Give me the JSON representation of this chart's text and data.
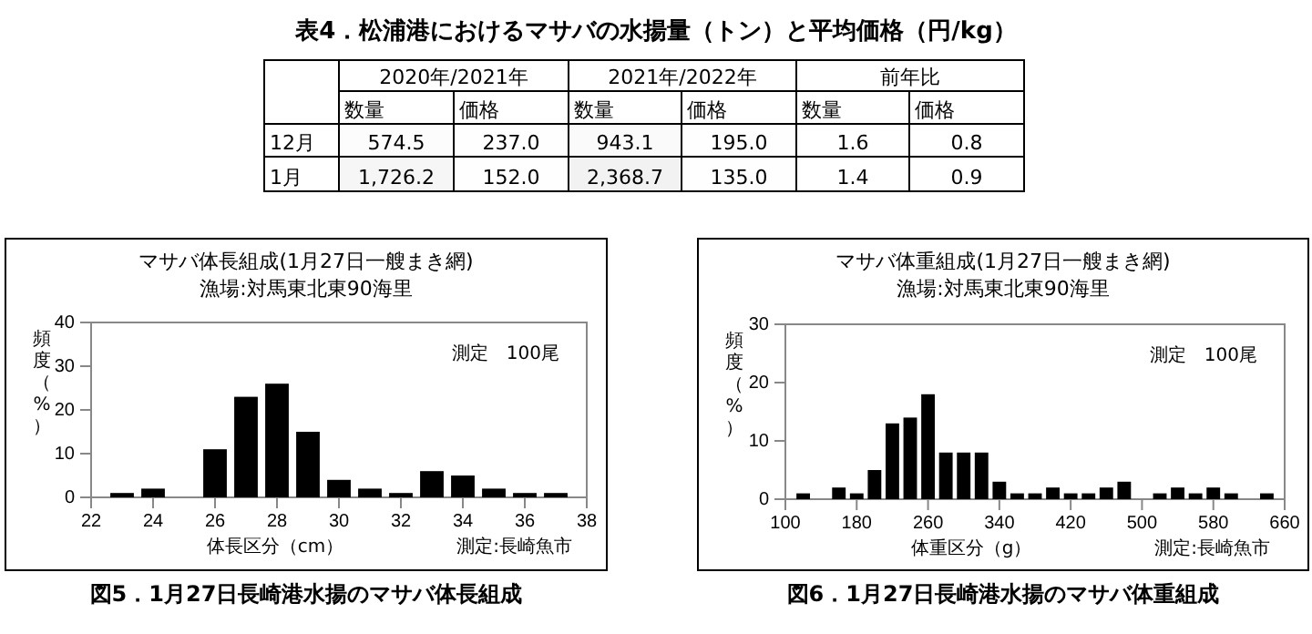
{
  "chart_data": [
    {
      "type": "heatmap",
      "title": "表4．松浦港におけるマサバの水揚量（トン）と平均価格（円/kg）",
      "categories": [
        "数量",
        "価格",
        "数量",
        "価格",
        "数量",
        "価格"
      ],
      "y_categories": [
        "12月",
        "1月"
      ],
      "cells": [
        [
          574.5,
          237.0,
          943.1,
          195.0,
          1.6,
          0.8
        ],
        [
          1726.2,
          152.0,
          2368.7,
          135.0,
          1.4,
          0.9
        ]
      ],
      "cell_labels": [
        [
          "574.5",
          "237.0",
          "943.1",
          "195.0",
          "1.6",
          "0.8"
        ],
        [
          "1,726.2",
          "152.0",
          "2,368.7",
          "135.0",
          "1.4",
          "0.9"
        ]
      ],
      "annotations": [
        "2020年/2021年",
        "2021年/2022年",
        "前年比"
      ]
    },
    {
      "type": "histogram",
      "title": "マサバ体長組成(1月27日一艘まき網)",
      "subtitle": "漁場:対馬東北東90海里",
      "xlabel": "体長区分（cm）",
      "ylabel": "頻度（%）",
      "bins": [
        22.5,
        23.5,
        24.5,
        25.5,
        26.5,
        27.5,
        28.5,
        29.5,
        30.5,
        31.5,
        32.5,
        33.5,
        34.5,
        35.5,
        36.5,
        37.5
      ],
      "values": [
        1,
        2,
        0,
        11,
        23,
        26,
        15,
        4,
        2,
        1,
        6,
        5,
        2,
        1,
        1
      ],
      "color": "#000000",
      "xlim": [
        22,
        38
      ],
      "xticks": [
        22,
        24,
        26,
        28,
        30,
        32,
        34,
        36,
        38
      ],
      "ylim": [
        0,
        40
      ],
      "yticks": [
        0,
        10,
        20,
        30,
        40
      ],
      "annotations": [
        "測定　100尾",
        "測定:長崎魚市",
        "図5．1月27日長崎港水揚のマサバ体長組成"
      ]
    },
    {
      "type": "histogram",
      "title": "マサバ体重組成(1月27日一艘まき網)",
      "subtitle": "漁場:対馬東北東90海里",
      "xlabel": "体重区分（g）",
      "ylabel": "頻度（%）",
      "bins": [
        110,
        130,
        150,
        170,
        190,
        210,
        230,
        250,
        270,
        290,
        310,
        330,
        350,
        370,
        390,
        410,
        430,
        450,
        470,
        490,
        510,
        530,
        550,
        570,
        590,
        610,
        630,
        650
      ],
      "values": [
        1,
        0,
        2,
        1,
        5,
        13,
        14,
        18,
        8,
        8,
        8,
        3,
        1,
        1,
        2,
        1,
        1,
        2,
        3,
        0,
        1,
        2,
        1,
        2,
        1,
        0,
        1
      ],
      "color": "#000000",
      "xlim": [
        100,
        660
      ],
      "xticks": [
        100,
        180,
        260,
        340,
        420,
        500,
        580,
        660
      ],
      "ylim": [
        0,
        30
      ],
      "yticks": [
        0,
        10,
        20,
        30
      ],
      "annotations": [
        "測定　100尾",
        "測定:長崎魚市",
        "図6．1月27日長崎港水揚のマサバ体重組成"
      ]
    }
  ]
}
